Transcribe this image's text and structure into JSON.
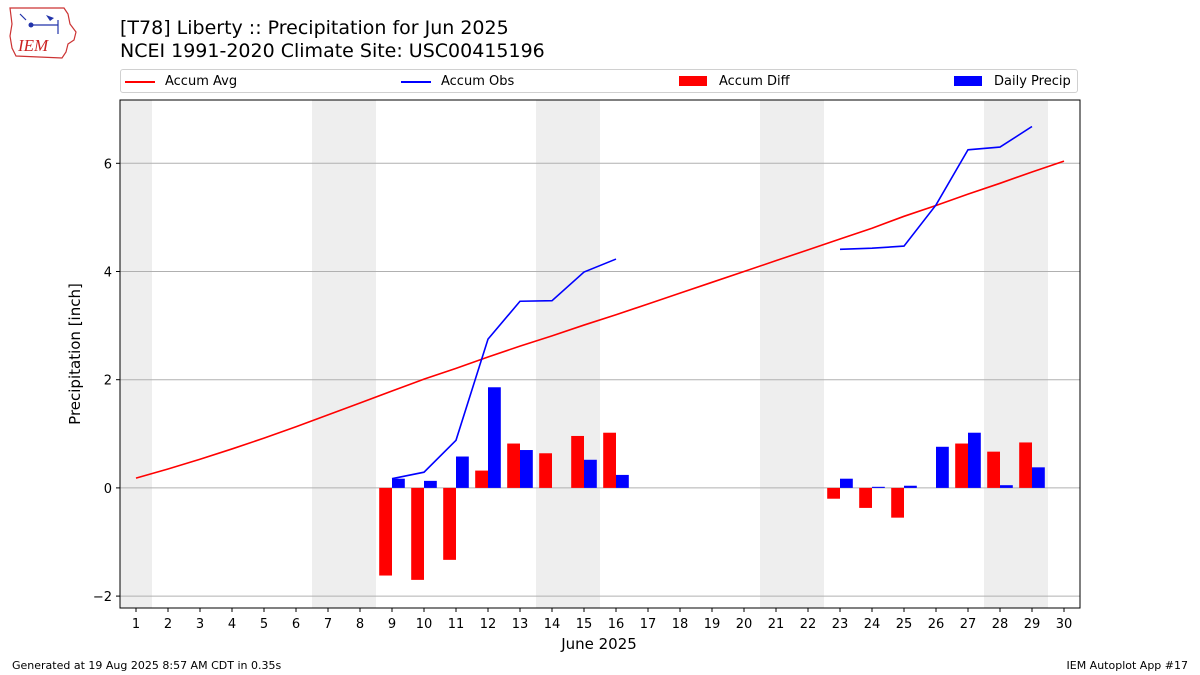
{
  "logo": {
    "text": "IEM"
  },
  "title": {
    "line1": "[T78] Liberty :: Precipitation for Jun 2025",
    "line2": "NCEI 1991-2020 Climate Site: USC00415196"
  },
  "legend": [
    {
      "label": "Accum Avg",
      "color": "#ff0000",
      "kind": "line"
    },
    {
      "label": "Accum Obs",
      "color": "#0000ff",
      "kind": "line"
    },
    {
      "label": "Accum Diff",
      "color": "#ff0000",
      "kind": "bar"
    },
    {
      "label": "Daily Precip",
      "color": "#0000ff",
      "kind": "bar"
    }
  ],
  "chart_data": {
    "type": "bar",
    "xlabel": "June 2025",
    "ylabel": "Precipitation [inch]",
    "xlim": [
      0.5,
      30.5
    ],
    "ylim": [
      -2.22,
      7.17
    ],
    "x_ticks": [
      1,
      2,
      3,
      4,
      5,
      6,
      7,
      8,
      9,
      10,
      11,
      12,
      13,
      14,
      15,
      16,
      17,
      18,
      19,
      20,
      21,
      22,
      23,
      24,
      25,
      26,
      27,
      28,
      29,
      30
    ],
    "y_ticks": [
      -2,
      0,
      2,
      4,
      6
    ],
    "grid": "horizontal",
    "weekend_shading": [
      [
        0.5,
        1.5
      ],
      [
        6.5,
        8.5
      ],
      [
        13.5,
        15.5
      ],
      [
        20.5,
        22.5
      ],
      [
        27.5,
        29.5
      ]
    ],
    "series": [
      {
        "name": "Accum Avg",
        "type": "line",
        "color": "#ff0000",
        "x": [
          1,
          2,
          3,
          4,
          5,
          6,
          7,
          8,
          9,
          10,
          11,
          12,
          13,
          14,
          15,
          16,
          17,
          18,
          19,
          20,
          21,
          22,
          23,
          24,
          25,
          26,
          27,
          28,
          29,
          30
        ],
        "values": [
          0.18,
          0.35,
          0.53,
          0.72,
          0.92,
          1.13,
          1.35,
          1.57,
          1.79,
          2.01,
          2.21,
          2.42,
          2.62,
          2.81,
          3.01,
          3.2,
          3.4,
          3.6,
          3.8,
          4.0,
          4.2,
          4.4,
          4.6,
          4.8,
          5.02,
          5.22,
          5.43,
          5.63,
          5.84,
          6.04
        ]
      },
      {
        "name": "Accum Obs",
        "type": "line",
        "color": "#0000ff",
        "segments": [
          {
            "x": [
              9,
              10,
              11,
              12,
              13,
              14,
              15,
              16
            ],
            "values": [
              0.17,
              0.29,
              0.88,
              2.75,
              3.45,
              3.46,
              3.99,
              4.23
            ]
          },
          {
            "x": [
              23,
              24,
              25,
              26,
              27,
              28,
              29
            ],
            "values": [
              4.41,
              4.43,
              4.47,
              5.23,
              6.25,
              6.3,
              6.68
            ]
          }
        ]
      },
      {
        "name": "Accum Diff",
        "type": "bar",
        "color": "#ff0000",
        "x": [
          9,
          10,
          11,
          12,
          13,
          14,
          15,
          16,
          23,
          24,
          25,
          27,
          28,
          29
        ],
        "values": [
          -1.62,
          -1.7,
          -1.33,
          0.32,
          0.82,
          0.64,
          0.96,
          1.02,
          -0.2,
          -0.37,
          -0.55,
          0.82,
          0.67,
          0.84
        ]
      },
      {
        "name": "Daily Precip",
        "type": "bar",
        "color": "#0000ff",
        "x": [
          9,
          10,
          11,
          12,
          13,
          15,
          16,
          23,
          24,
          25,
          26,
          27,
          28,
          29
        ],
        "values": [
          0.17,
          0.13,
          0.58,
          1.86,
          0.7,
          0.52,
          0.24,
          0.17,
          0.02,
          0.04,
          0.76,
          1.02,
          0.05,
          0.38
        ]
      }
    ]
  },
  "footer": {
    "left": "Generated at 19 Aug 2025 8:57 AM CDT in 0.35s",
    "right": "IEM Autoplot App #17"
  }
}
